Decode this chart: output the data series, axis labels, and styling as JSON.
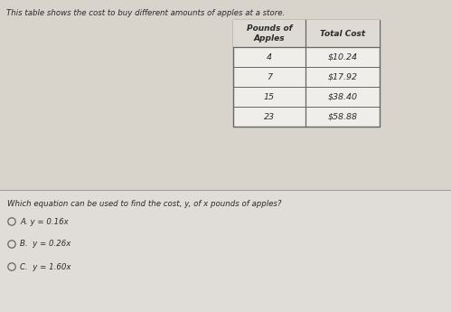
{
  "title_text": "This table shows the cost to buy different amounts of apples at a store.",
  "col1_header": "Pounds of\nApples",
  "col2_header": "Total Cost",
  "table_data": [
    [
      "4",
      "$10.24"
    ],
    [
      "7",
      "$17.92"
    ],
    [
      "15",
      "$38.40"
    ],
    [
      "23",
      "$58.88"
    ]
  ],
  "question_text": "Which equation can be used to find the cost, y, of x pounds of apples?",
  "options": [
    "A. y = 0.16x",
    "B.  y = 0.26x",
    "C.  y = 1.60x"
  ],
  "bg_color_top": "#cdc9c2",
  "bg_color_bottom": "#dbd8d2",
  "table_bg": "#f0eeea",
  "header_bg": "#dedad4",
  "text_color": "#2a2a2a",
  "divider_color": "#999999",
  "line_color": "#666666"
}
